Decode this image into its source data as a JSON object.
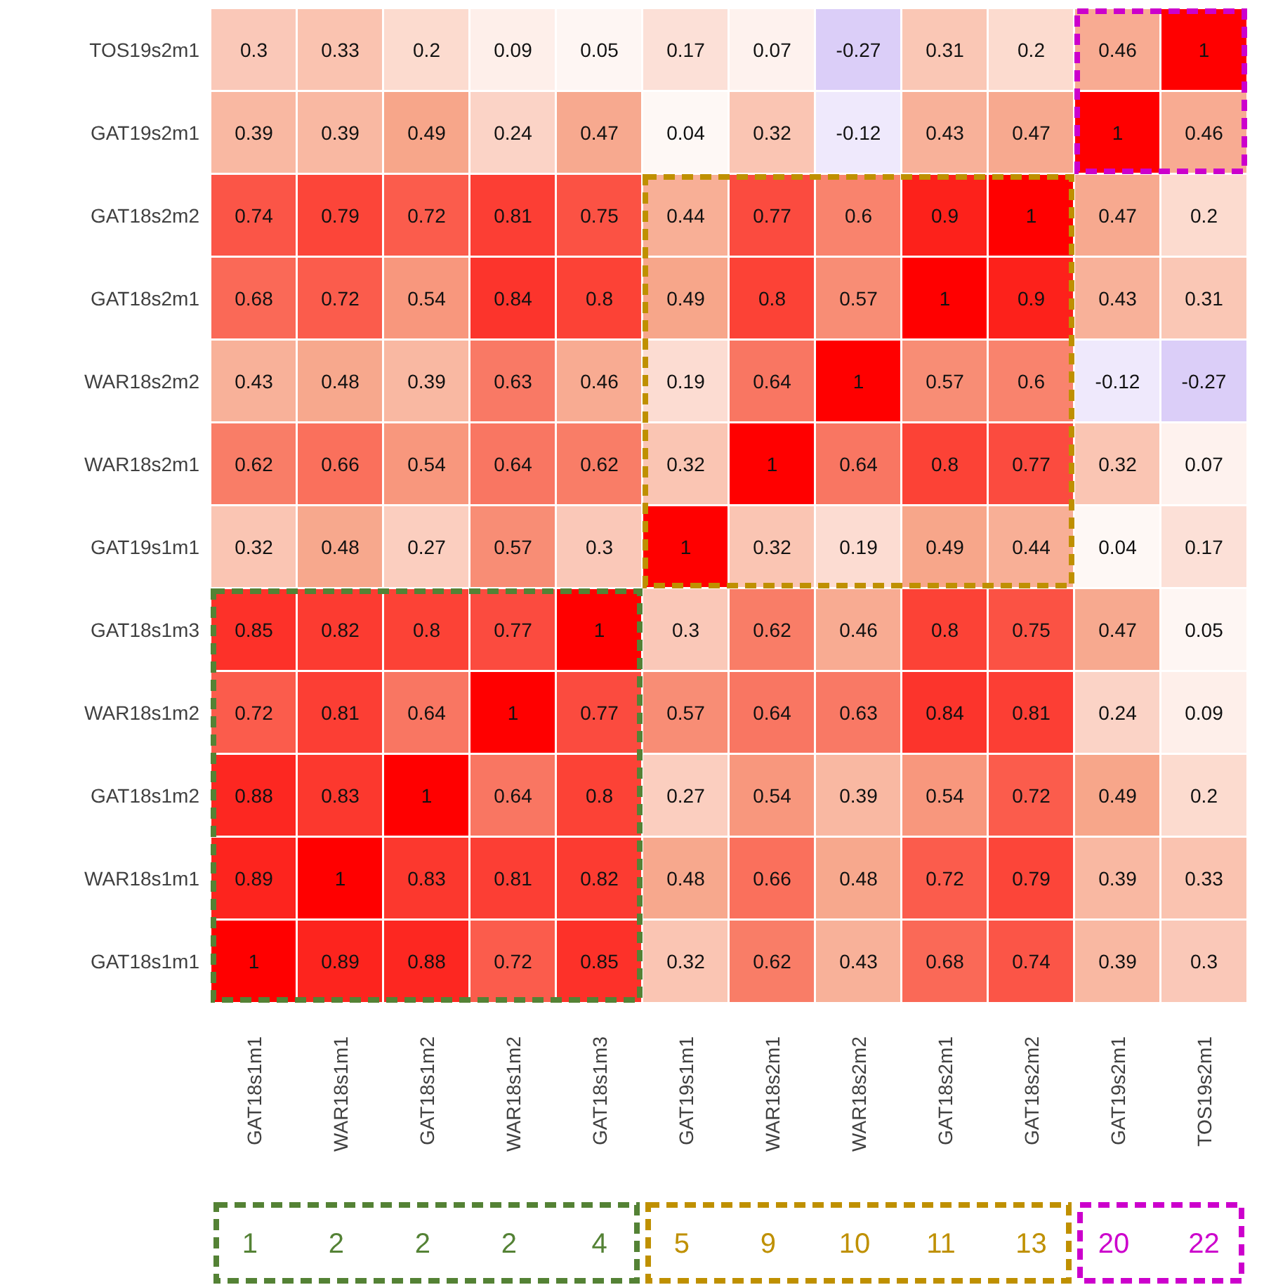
{
  "chart_data": {
    "type": "heatmap",
    "categories": [
      "GAT18s1m1",
      "WAR18s1m1",
      "GAT18s1m2",
      "WAR18s1m2",
      "GAT18s1m3",
      "GAT19s1m1",
      "WAR18s2m1",
      "WAR18s2m2",
      "GAT18s2m1",
      "GAT18s2m2",
      "GAT19s2m1",
      "TOS19s2m1"
    ],
    "y_categories": [
      "TOS19s2m1",
      "GAT19s2m1",
      "GAT18s2m2",
      "GAT18s2m1",
      "WAR18s2m2",
      "WAR18s2m1",
      "GAT19s1m1",
      "GAT18s1m3",
      "WAR18s1m2",
      "GAT18s1m2",
      "WAR18s1m1",
      "GAT18s1m1"
    ],
    "cells": [
      [
        0.3,
        0.33,
        0.2,
        0.09,
        0.05,
        0.17,
        0.07,
        -0.27,
        0.31,
        0.2,
        0.46,
        1
      ],
      [
        0.39,
        0.39,
        0.49,
        0.24,
        0.47,
        0.04,
        0.32,
        -0.12,
        0.43,
        0.47,
        1,
        0.46
      ],
      [
        0.74,
        0.79,
        0.72,
        0.81,
        0.75,
        0.44,
        0.77,
        0.6,
        0.9,
        1,
        0.47,
        0.2
      ],
      [
        0.68,
        0.72,
        0.54,
        0.84,
        0.8,
        0.49,
        0.8,
        0.57,
        1,
        0.9,
        0.43,
        0.31
      ],
      [
        0.43,
        0.48,
        0.39,
        0.63,
        0.46,
        0.19,
        0.64,
        1,
        0.57,
        0.6,
        -0.12,
        -0.27
      ],
      [
        0.62,
        0.66,
        0.54,
        0.64,
        0.62,
        0.32,
        1,
        0.64,
        0.8,
        0.77,
        0.32,
        0.07
      ],
      [
        0.32,
        0.48,
        0.27,
        0.57,
        0.3,
        1,
        0.32,
        0.19,
        0.49,
        0.44,
        0.04,
        0.17
      ],
      [
        0.85,
        0.82,
        0.8,
        0.77,
        1,
        0.3,
        0.62,
        0.46,
        0.8,
        0.75,
        0.47,
        0.05
      ],
      [
        0.72,
        0.81,
        0.64,
        1,
        0.77,
        0.57,
        0.64,
        0.63,
        0.84,
        0.81,
        0.24,
        0.09
      ],
      [
        0.88,
        0.83,
        1,
        0.64,
        0.8,
        0.27,
        0.54,
        0.39,
        0.54,
        0.72,
        0.49,
        0.2
      ],
      [
        0.89,
        1,
        0.83,
        0.81,
        0.82,
        0.48,
        0.66,
        0.48,
        0.72,
        0.79,
        0.39,
        0.33
      ],
      [
        1,
        0.89,
        0.88,
        0.72,
        0.85,
        0.32,
        0.62,
        0.43,
        0.68,
        0.74,
        0.39,
        0.3
      ]
    ],
    "data_labels": true,
    "annotations": [
      "1 2 2 2 4",
      "5 9 10 11 13",
      "20 22"
    ]
  }
}
